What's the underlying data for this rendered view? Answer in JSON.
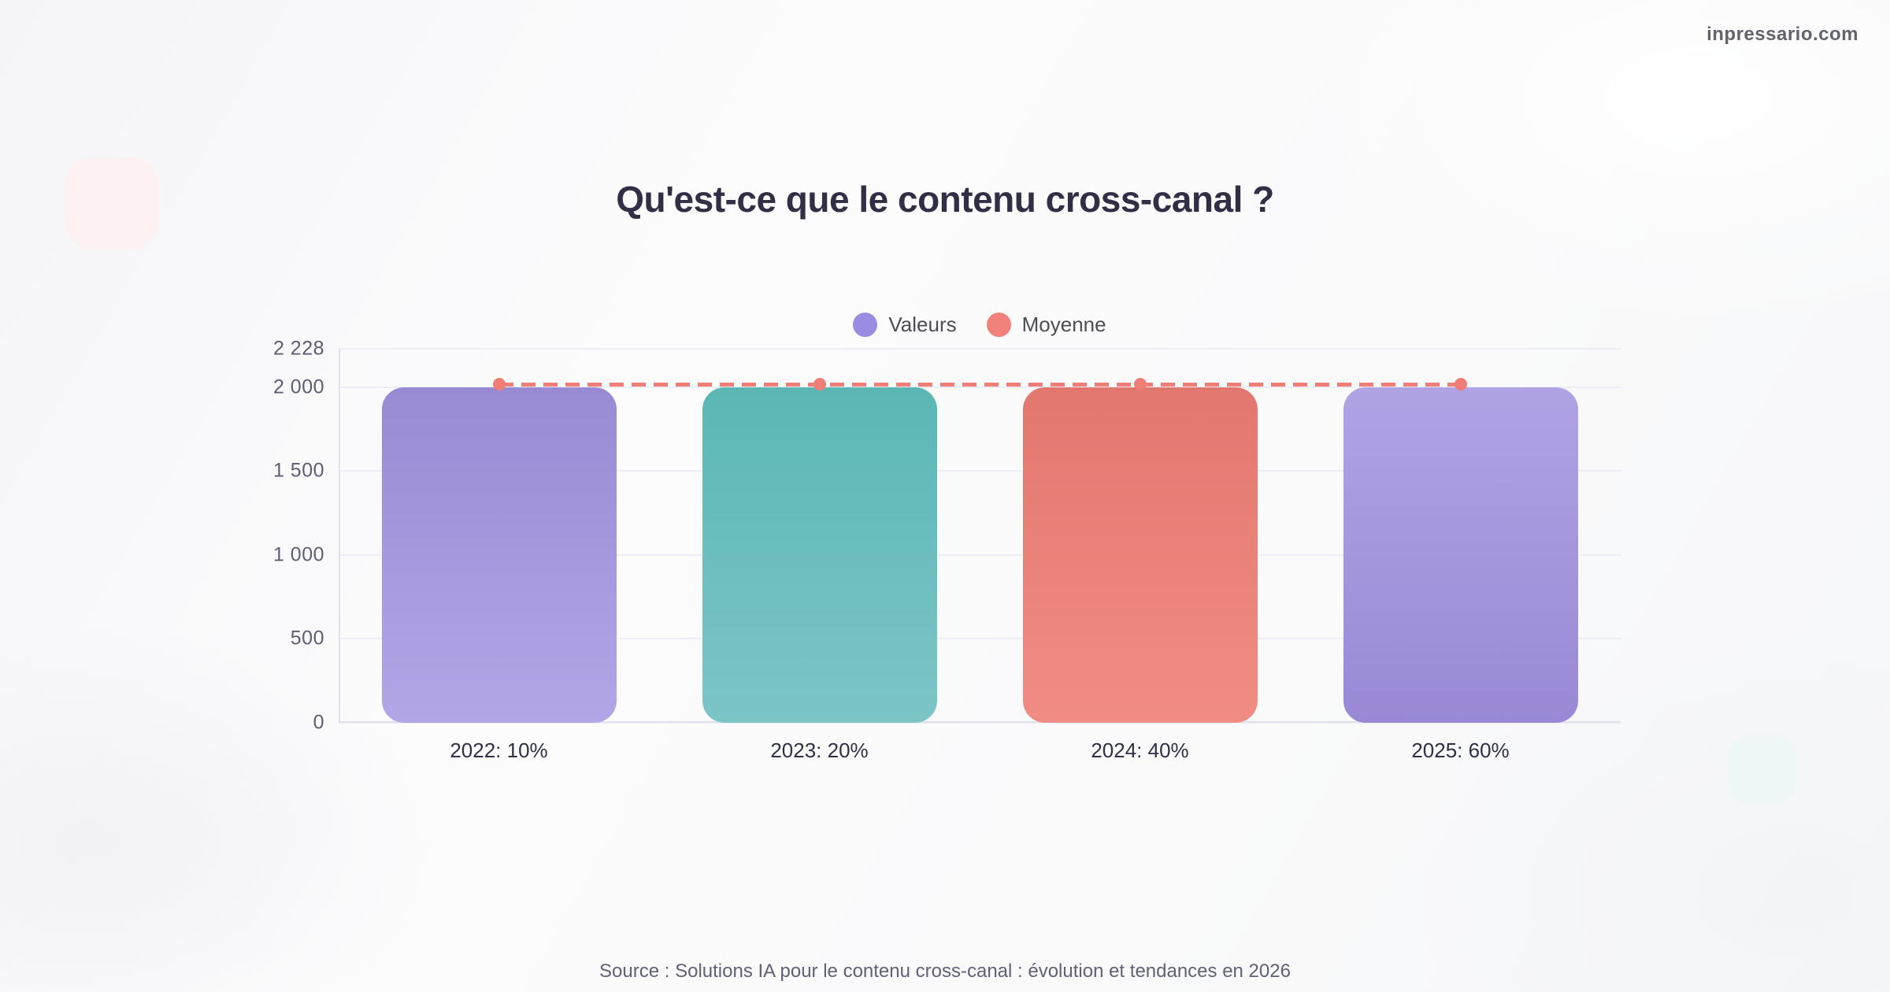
{
  "page": {
    "watermark": "inpressario.com",
    "title": "Qu'est-ce que le contenu cross-canal ?",
    "source": "Source : Solutions IA pour le contenu cross-canal : évolution et tendances en 2026"
  },
  "legend": {
    "position": "top-center",
    "items": [
      {
        "label": "Valeurs",
        "color": "#9a8ce2"
      },
      {
        "label": "Moyenne",
        "color": "#f0827b"
      }
    ]
  },
  "chart_data": {
    "type": "bar",
    "title": "Qu'est-ce que le contenu cross-canal ?",
    "categories": [
      "2022: 10%",
      "2023: 20%",
      "2024: 40%",
      "2025: 60%"
    ],
    "series": [
      {
        "name": "Valeurs",
        "values": [
          2000,
          2000,
          2000,
          2000
        ]
      }
    ],
    "average_line": {
      "name": "Moyenne",
      "value": 2000,
      "style": "dashed",
      "color": "#ef7e77"
    },
    "yticks": [
      0,
      500,
      1000,
      1500,
      2000,
      2228
    ],
    "ytick_labels": [
      "0",
      "500",
      "1 000",
      "1 500",
      "2 000",
      "2 228"
    ],
    "ylim": [
      0,
      2228
    ],
    "grid": true,
    "legend_position": "top-center",
    "bar_colors": [
      {
        "top": "#998ad4",
        "bottom": "#b2a6e6"
      },
      {
        "top": "#5bb7b4",
        "bottom": "#7cc5c7"
      },
      {
        "top": "#e2776f",
        "bottom": "#f18c85"
      },
      {
        "top": "#b0a3e4",
        "bottom": "#9a88d6"
      }
    ]
  },
  "colors": {
    "title_text": "#312f45",
    "axis_label_text": "#5d5d74",
    "category_label_text": "#2f2f48",
    "gridline": "#ededf5",
    "axis_line": "#e1e1eb",
    "decor_pink_square": "#fdf1f1",
    "decor_teal_square": "#edf7f5",
    "background": "#fafafb"
  }
}
